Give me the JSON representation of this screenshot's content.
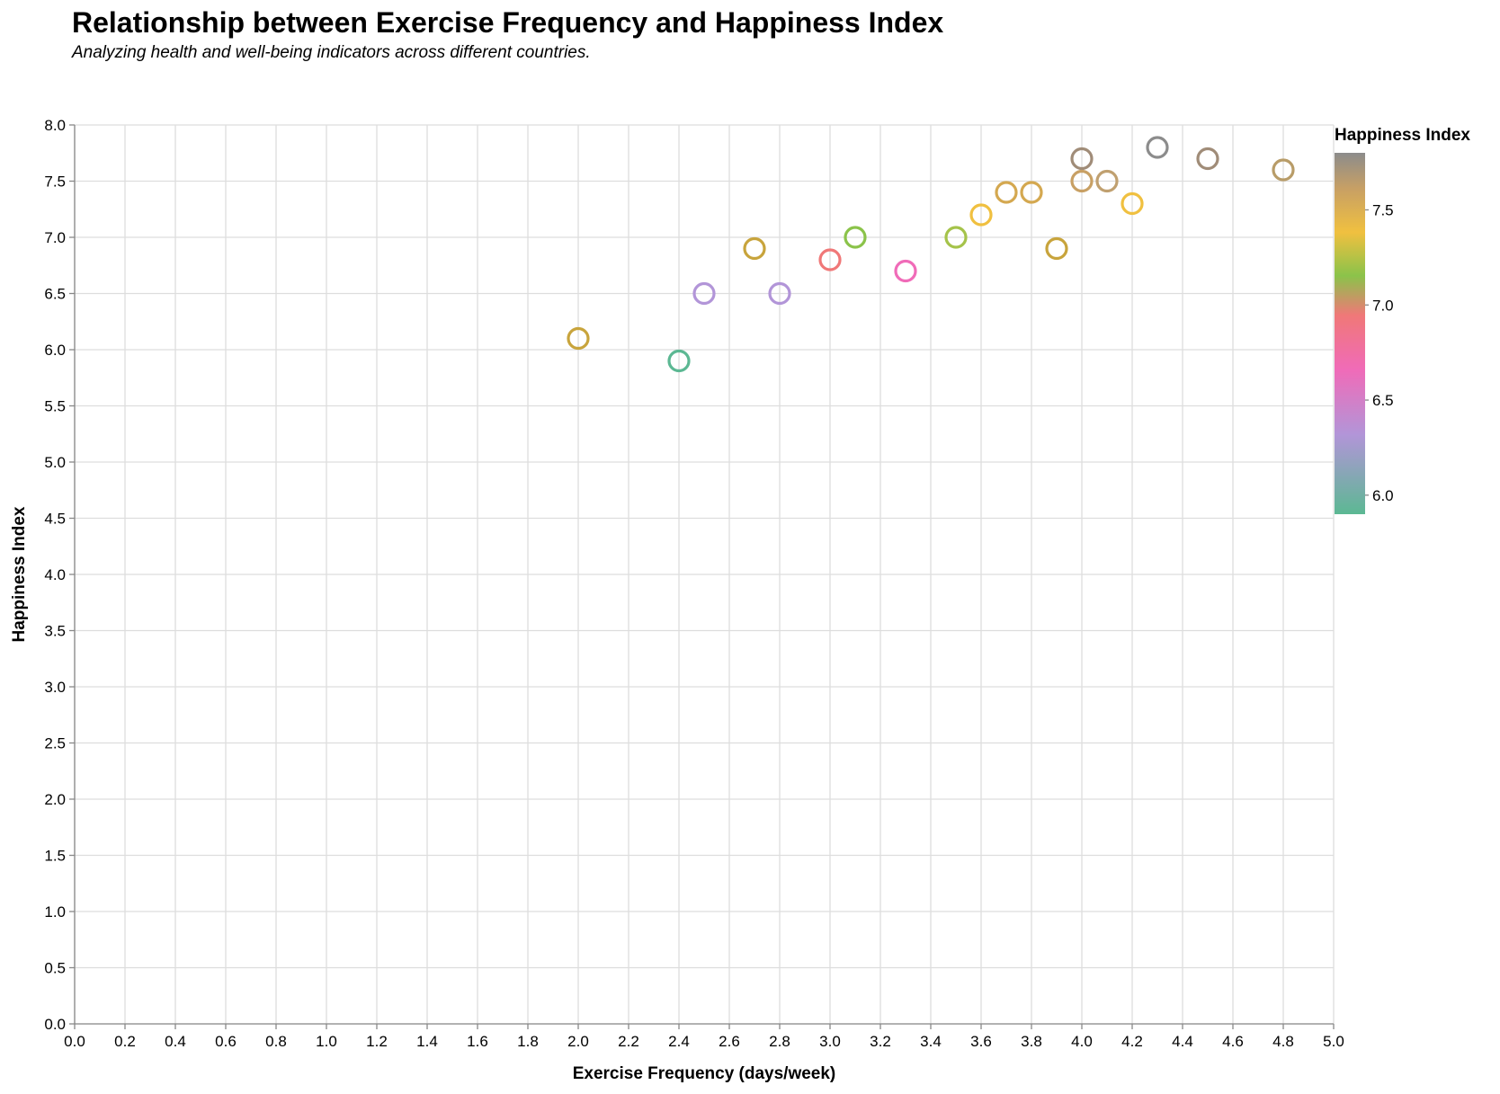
{
  "chart_data": {
    "type": "scatter",
    "title": "Relationship between Exercise Frequency and Happiness Index",
    "subtitle": "Analyzing health and well-being indicators across different countries.",
    "xlabel": "Exercise Frequency (days/week)",
    "ylabel": "Happiness Index",
    "xlim": [
      0,
      5
    ],
    "ylim": [
      0,
      8
    ],
    "x_ticks": [
      "0.0",
      "0.2",
      "0.4",
      "0.6",
      "0.8",
      "1.0",
      "1.2",
      "1.4",
      "1.6",
      "1.8",
      "2.0",
      "2.2",
      "2.4",
      "2.6",
      "2.8",
      "3.0",
      "3.2",
      "3.4",
      "3.6",
      "3.8",
      "4.0",
      "4.2",
      "4.4",
      "4.6",
      "4.8",
      "5.0"
    ],
    "y_ticks": [
      "0.0",
      "0.5",
      "1.0",
      "1.5",
      "2.0",
      "2.5",
      "3.0",
      "3.5",
      "4.0",
      "4.5",
      "5.0",
      "5.5",
      "6.0",
      "6.5",
      "7.0",
      "7.5",
      "8.0"
    ],
    "grid": true,
    "legend": {
      "title": "Happiness Index",
      "placement": "right",
      "labels": [
        "6.0",
        "6.5",
        "7.0",
        "7.5"
      ],
      "colors": [
        "#5cb893",
        "#b295d8",
        "#f06bb8",
        "#8bc34a",
        "#f0c040",
        "#d4a850",
        "#8c8c8c"
      ]
    },
    "series": [
      {
        "points": [
          {
            "x": 2.0,
            "y": 6.1,
            "color": "#c8a43c"
          },
          {
            "x": 2.4,
            "y": 5.9,
            "color": "#5cb893"
          },
          {
            "x": 2.5,
            "y": 6.5,
            "color": "#b295d8"
          },
          {
            "x": 2.7,
            "y": 6.9,
            "color": "#c8a43c"
          },
          {
            "x": 2.8,
            "y": 6.5,
            "color": "#b295d8"
          },
          {
            "x": 3.0,
            "y": 6.8,
            "color": "#f07878"
          },
          {
            "x": 3.1,
            "y": 7.0,
            "color": "#8bc34a"
          },
          {
            "x": 3.3,
            "y": 6.7,
            "color": "#f06bb8"
          },
          {
            "x": 3.5,
            "y": 7.0,
            "color": "#a5c34a"
          },
          {
            "x": 3.6,
            "y": 7.2,
            "color": "#f0c040"
          },
          {
            "x": 3.7,
            "y": 7.4,
            "color": "#d4a850"
          },
          {
            "x": 3.8,
            "y": 7.4,
            "color": "#d4a850"
          },
          {
            "x": 3.9,
            "y": 6.9,
            "color": "#c8a43c"
          },
          {
            "x": 4.0,
            "y": 7.7,
            "color": "#a08c78"
          },
          {
            "x": 4.0,
            "y": 7.5,
            "color": "#c8a064"
          },
          {
            "x": 4.1,
            "y": 7.5,
            "color": "#c0a070"
          },
          {
            "x": 4.2,
            "y": 7.3,
            "color": "#f0c040"
          },
          {
            "x": 4.3,
            "y": 7.8,
            "color": "#8c8c8c"
          },
          {
            "x": 4.5,
            "y": 7.7,
            "color": "#a08c78"
          },
          {
            "x": 4.8,
            "y": 7.6,
            "color": "#b89c68"
          }
        ]
      }
    ]
  }
}
